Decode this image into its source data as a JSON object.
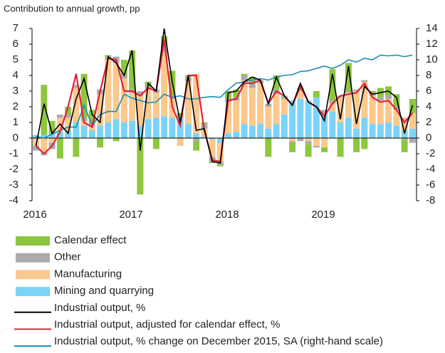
{
  "chart_data": {
    "type": "bar",
    "title": "Contribution to annual growth, pp",
    "categories": [
      "2016",
      null,
      null,
      null,
      null,
      null,
      null,
      null,
      null,
      null,
      null,
      null,
      "2017",
      null,
      null,
      null,
      null,
      null,
      null,
      null,
      null,
      null,
      null,
      null,
      "2018",
      null,
      null,
      null,
      null,
      null,
      null,
      null,
      null,
      null,
      null,
      null,
      "2019",
      null,
      null,
      null,
      null,
      null,
      null,
      null,
      null,
      null,
      null,
      null
    ],
    "ylim": [
      -4,
      7
    ],
    "yticks": [
      -4,
      -3,
      -2,
      -1,
      0,
      1,
      2,
      3,
      4,
      5,
      6,
      7
    ],
    "y2lim": [
      -8,
      14
    ],
    "y2ticks": [
      -8,
      -6,
      -4,
      -2,
      0,
      2,
      4,
      6,
      8,
      10,
      12,
      14
    ],
    "series": [
      {
        "name": "Calendar effect",
        "color": "#8dc63f",
        "values": [
          0,
          3.2,
          0.8,
          -1.3,
          0.5,
          -1.2,
          2.8,
          0.8,
          -0.6,
          0.1,
          -0.2,
          1.0,
          2.5,
          -3.6,
          0.3,
          -0.7,
          0.7,
          1.6,
          0.2,
          0.1,
          -0.6,
          0.1,
          -0.1,
          -0.1,
          0.5,
          0.5,
          0.1,
          0.4,
          0.0,
          -1.2,
          0.9,
          0,
          -0.6,
          0.2,
          -0.8,
          0.4,
          -0.3,
          2.0,
          -1.2,
          1.8,
          -0.9,
          -0.7,
          0.2,
          0.6,
          0.6,
          0.8,
          -0.8,
          0.9
        ]
      },
      {
        "name": "Other",
        "color": "#ababab",
        "values": [
          -0.3,
          -0.2,
          -0.4,
          0.2,
          0.2,
          0.2,
          0.2,
          0.2,
          0.3,
          0.2,
          0.4,
          0.2,
          0.2,
          0.3,
          0.2,
          0.2,
          0.3,
          0.2,
          0.1,
          0.3,
          -0.2,
          0.3,
          -0.3,
          -0.2,
          0.2,
          0.2,
          0.3,
          0.3,
          0.2,
          0.2,
          0.3,
          0.2,
          -0.1,
          -0.2,
          -0.2,
          -0.1,
          0.3,
          0.2,
          0.1,
          0.1,
          0.1,
          0.1,
          0.1,
          0.2,
          0.2,
          0.2,
          -0.1,
          -0.3
        ]
      },
      {
        "name": "Manufacturing",
        "color": "#fbc98e",
        "values": [
          -0.5,
          -0.9,
          -0.3,
          0.9,
          0.8,
          2.2,
          0.3,
          0.3,
          2.0,
          4.0,
          3.6,
          2.8,
          1.8,
          1.9,
          1.9,
          1.6,
          4.1,
          1.2,
          -0.5,
          2.7,
          3.8,
          0.5,
          -1.1,
          -1.2,
          2.0,
          2.0,
          2.8,
          2.4,
          2.6,
          1.4,
          1.9,
          1.0,
          -0.2,
          0.5,
          -0.2,
          -0.5,
          -0.6,
          0.5,
          1.6,
          1.6,
          2.4,
          2.3,
          1.8,
          1.5,
          1.5,
          1.0,
          0.8,
          1.0
        ]
      },
      {
        "name": "Mining and quarrying",
        "color": "#7dd3f5",
        "values": [
          0.2,
          0.2,
          0.3,
          0.4,
          0.5,
          1.0,
          0.8,
          0.5,
          0.8,
          1.0,
          1.2,
          1.0,
          1.1,
          0.8,
          1.2,
          1.3,
          1.4,
          1.3,
          1.3,
          0.9,
          0.3,
          0.1,
          -0.1,
          -0.3,
          0.3,
          0.4,
          0.9,
          0.8,
          0.9,
          0.6,
          0.9,
          1.5,
          2.4,
          2.5,
          2.4,
          2.6,
          1.5,
          1.7,
          1.0,
          1.3,
          0.6,
          1.3,
          0.9,
          0.9,
          1.0,
          0.8,
          0.5,
          0.6
        ]
      },
      {
        "name": "Industrial output, %",
        "type": "line",
        "color": "#000000",
        "values": [
          -0.5,
          2.2,
          0.3,
          0.9,
          0.3,
          2.5,
          3.8,
          1.5,
          1.0,
          5.2,
          4.8,
          4.0,
          5.6,
          -0.8,
          3.5,
          3.0,
          7.0,
          3.6,
          1.0,
          4.0,
          0.5,
          0.6,
          -1.5,
          -1.6,
          2.9,
          3.0,
          3.6,
          3.9,
          3.7,
          2.2,
          3.9,
          2.7,
          2.1,
          3.5,
          2.3,
          2.0,
          1.1,
          4.1,
          1.2,
          4.6,
          0.9,
          3.3,
          2.8,
          2.9,
          3.0,
          2.6,
          0.3,
          2.1
        ]
      },
      {
        "name": "Industrial output, adjusted for calendar effect, %",
        "type": "line",
        "color": "#e3203b",
        "values": [
          -0.5,
          -1.0,
          -0.5,
          0.4,
          2.0,
          4.1,
          1.0,
          0.7,
          3.0,
          5.1,
          5.0,
          3.0,
          3.0,
          2.7,
          3.2,
          3.0,
          6.3,
          2.0,
          0.8,
          4.0,
          4.0,
          0.5,
          -1.4,
          -1.5,
          2.4,
          2.5,
          3.5,
          3.5,
          3.7,
          2.2,
          3.0,
          2.7,
          2.1,
          3.3,
          2.3,
          2.0,
          1.4,
          2.2,
          2.7,
          2.8,
          2.9,
          3.5,
          2.6,
          2.3,
          2.4,
          1.8,
          1.0,
          1.6
        ]
      },
      {
        "name": "Industrial output, % change on December 2015, SA (right-hand scale)",
        "type": "line",
        "axis": "y2",
        "color": "#1a8cb3",
        "values": [
          0.2,
          0.0,
          0.5,
          1.0,
          1.4,
          1.4,
          4.2,
          1.6,
          3.0,
          3.4,
          3.4,
          5.6,
          5.1,
          4.8,
          4.5,
          4.6,
          5.6,
          5.2,
          5.4,
          5.0,
          5.0,
          5.2,
          5.3,
          5.2,
          6.2,
          7.0,
          7.2,
          7.4,
          7.6,
          7.4,
          7.8,
          8.0,
          8.1,
          8.5,
          8.6,
          8.9,
          9.2,
          8.9,
          9.3,
          10.0,
          9.7,
          10.2,
          10.0,
          10.6,
          10.5,
          10.6,
          10.4,
          10.6
        ]
      }
    ]
  }
}
